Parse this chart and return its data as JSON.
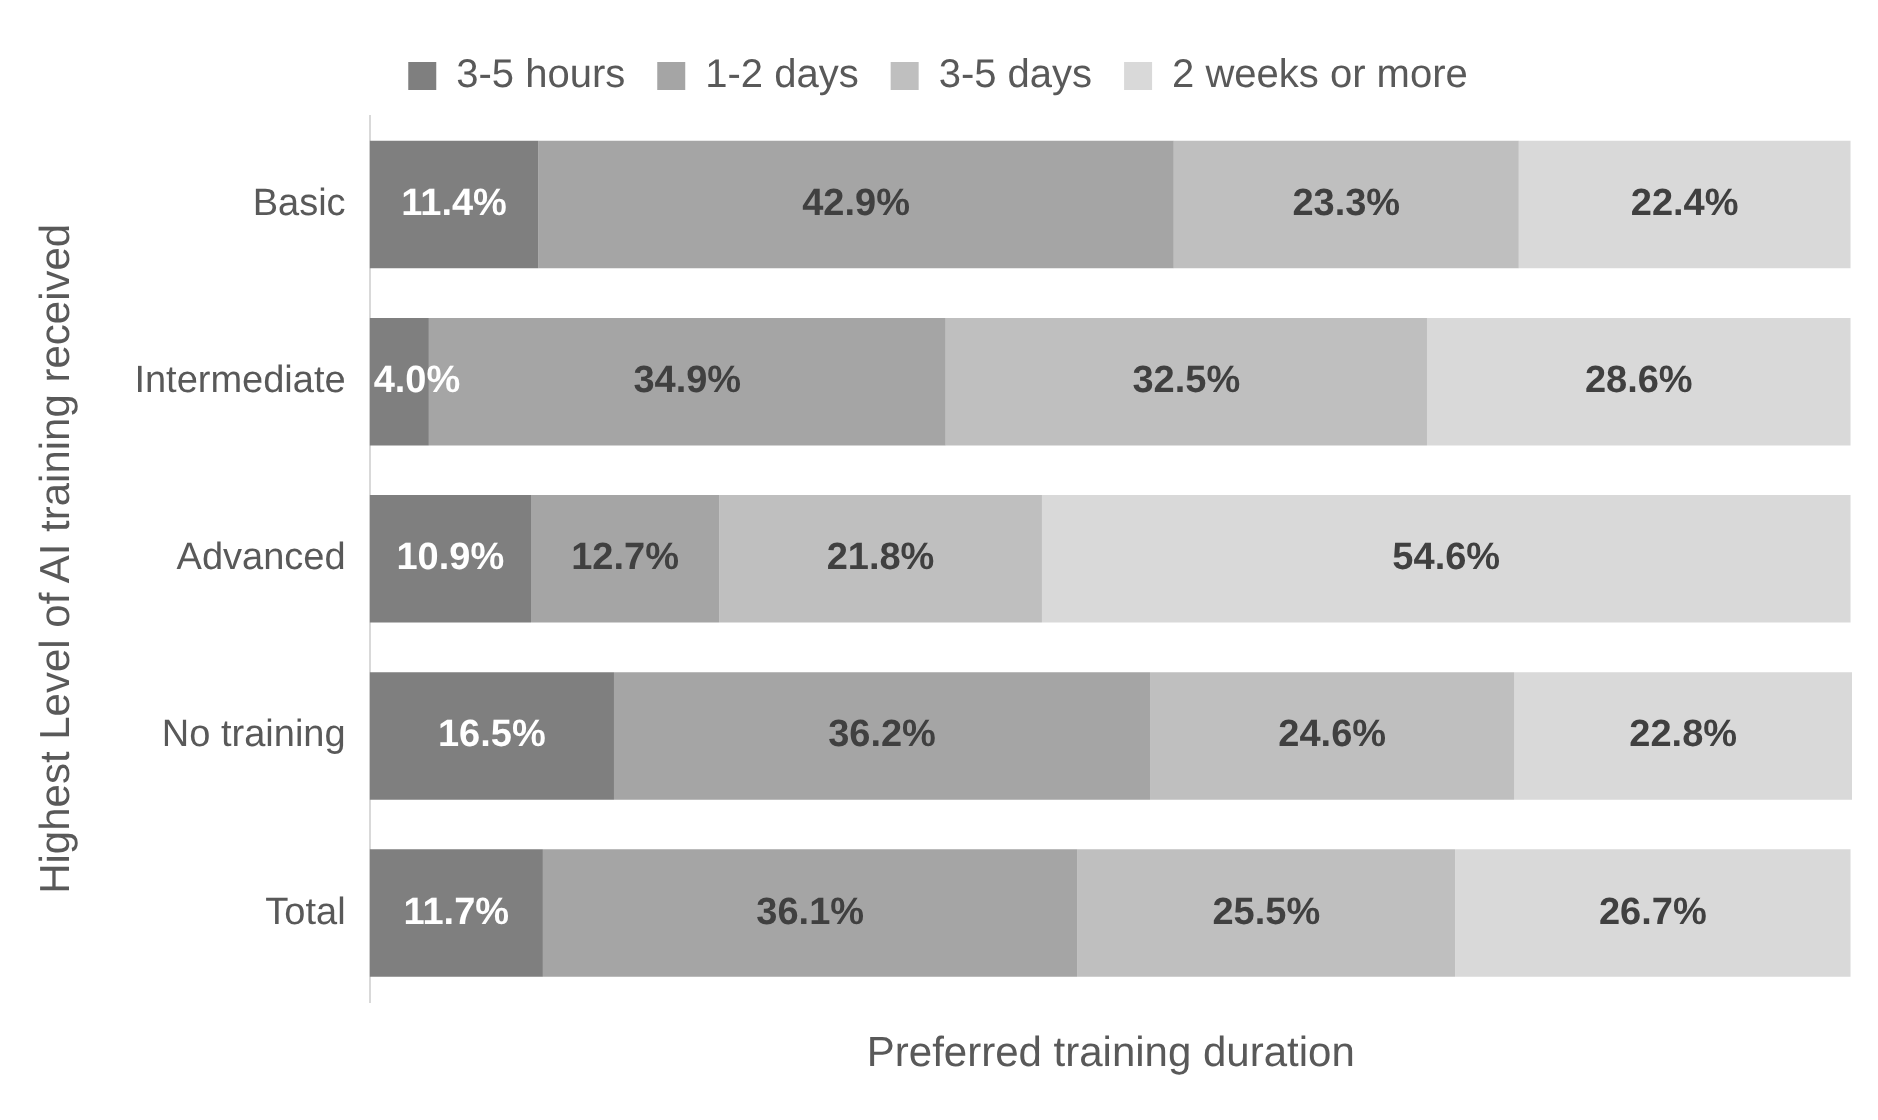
{
  "chart_data": {
    "type": "bar",
    "orientation": "horizontal",
    "stacked": true,
    "relative": false,
    "xlabel": "Preferred training duration",
    "ylabel": "Highest Level of AI training received",
    "legend": "top",
    "grid": false,
    "categories": [
      "Basic",
      "Intermediate",
      "Advanced",
      "No training",
      "Total"
    ],
    "series": [
      {
        "name": "3-5 hours",
        "color": "#7f7f7f",
        "values": [
          11.4,
          4.0,
          10.9,
          16.5,
          11.7
        ],
        "value_labels": [
          "11.4%",
          "4.0%",
          "10.9%",
          "16.5%",
          "11.7%"
        ]
      },
      {
        "name": "1-2 days",
        "color": "#a5a5a5",
        "values": [
          42.9,
          34.9,
          12.7,
          36.2,
          36.1
        ],
        "value_labels": [
          "42.9%",
          "34.9%",
          "12.7%",
          "36.2%",
          "36.1%"
        ]
      },
      {
        "name": "3-5 days",
        "color": "#bfbfbf",
        "values": [
          23.3,
          32.5,
          21.8,
          24.6,
          25.5
        ],
        "value_labels": [
          "23.3%",
          "32.5%",
          "21.8%",
          "24.6%",
          "25.5%"
        ]
      },
      {
        "name": "2 weeks or more",
        "color": "#d9d9d9",
        "values": [
          22.4,
          28.6,
          54.6,
          22.8,
          26.7
        ],
        "value_labels": [
          "22.4%",
          "28.6%",
          "54.6%",
          "22.8%",
          "26.7%"
        ]
      }
    ]
  }
}
